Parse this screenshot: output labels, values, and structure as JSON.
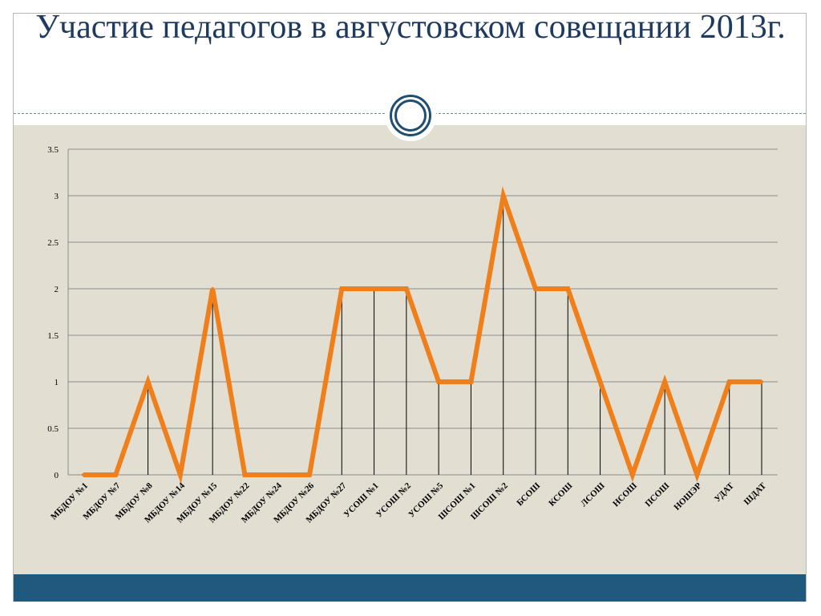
{
  "slide": {
    "title": "Участие педагогов в августовском совещании 2013г."
  },
  "colors": {
    "title": "#1f3a5f",
    "panel": "#e2ded2",
    "footer": "#1f5a7e",
    "line": "#ef7f1a",
    "grid": "#8c8c8c"
  },
  "chart_data": {
    "type": "line",
    "title": "",
    "xlabel": "",
    "ylabel": "",
    "ylim": [
      0,
      3.5
    ],
    "yticks": [
      0,
      0.5,
      1,
      1.5,
      2,
      2.5,
      3,
      3.5
    ],
    "ytick_labels": [
      "0",
      "0.5",
      "1",
      "1.5",
      "2",
      "2.5",
      "3",
      "3.5"
    ],
    "grid": true,
    "drop_lines": true,
    "legend": "none",
    "categories": [
      "МБДОУ №1",
      "МБДОУ №7",
      "МБДОУ №8",
      "МБДОУ №14",
      "МБДОУ №15",
      "МБДОУ №22",
      "МБДОУ №24",
      "МБДОУ №26",
      "МБДОУ №27",
      "УСОШ №1",
      "УСОШ №2",
      "УСОШ №5",
      "ШСОШ №1",
      "ШСОШ №2",
      "БСОШ",
      "КСОШ",
      "ЛСОШ",
      "НСОШ",
      "ПСОШ",
      "НОШЭР",
      "УДАТ",
      "ШДАТ"
    ],
    "series": [
      {
        "values": [
          0,
          0,
          1,
          0,
          2,
          0,
          0,
          0,
          2,
          2,
          2,
          1,
          1,
          3,
          2,
          2,
          1,
          0,
          1,
          0,
          1,
          1
        ]
      }
    ]
  }
}
